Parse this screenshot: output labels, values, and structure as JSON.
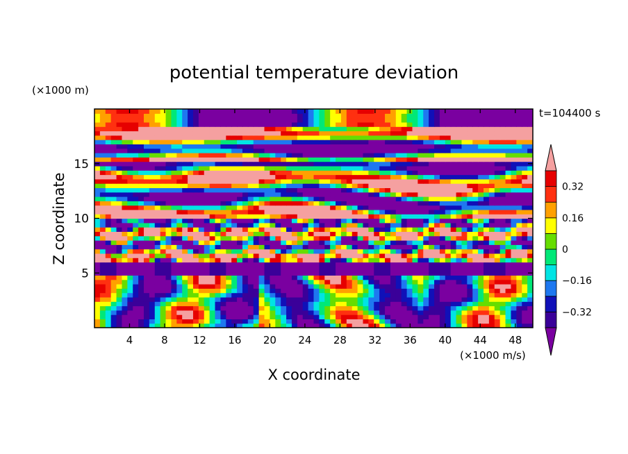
{
  "chart_data": {
    "type": "heatmap",
    "title": "potential temperature deviation",
    "xlabel": "X coordinate",
    "ylabel": "Z coordinate",
    "x_unit_label": "(×1000 m/s)",
    "y_unit_label": "(×1000 m)",
    "time_label": "t=104400 s",
    "x_range": [
      0,
      50
    ],
    "y_range": [
      0,
      20
    ],
    "x_ticks": [
      4,
      8,
      12,
      16,
      20,
      24,
      28,
      32,
      36,
      40,
      44,
      48
    ],
    "y_ticks": [
      5,
      10,
      15
    ],
    "colorbar": {
      "levels": [
        -0.4,
        -0.32,
        -0.24,
        -0.16,
        -0.08,
        0,
        0.08,
        0.16,
        0.24,
        0.32,
        0.4
      ],
      "tick_labels": [
        "0.32",
        "0.16",
        "0",
        "−0.16",
        "−0.32"
      ],
      "tick_values": [
        0.32,
        0.16,
        0,
        -0.16,
        -0.32
      ],
      "colors": [
        "#7a00a0",
        "#3a0099",
        "#1010b8",
        "#1e78f0",
        "#00e4e4",
        "#00e878",
        "#66dd00",
        "#ffff00",
        "#ffa000",
        "#ff3010",
        "#e60000",
        "#f5a0a0"
      ],
      "extend": "both"
    },
    "bands": [
      {
        "z_range": [
          18.5,
          20
        ],
        "pattern": "alternating pink and purple lenses",
        "dominant_value": 0.4
      },
      {
        "z_range": [
          15,
          18.5
        ],
        "pattern": "long pink streaks on purple",
        "dominant_value": -0.4
      },
      {
        "z_range": [
          10,
          15
        ],
        "pattern": "interleaved pink and purple lenses with thin rainbow edges",
        "dominant_value": 0.4
      },
      {
        "z_range": [
          6,
          10
        ],
        "pattern": "turbulent mixed layer",
        "dominant_value": 0.0
      },
      {
        "z_range": [
          0,
          6
        ],
        "pattern": "wave plumes of red, yellow, green, cyan and blue",
        "dominant_value": -0.1
      }
    ]
  }
}
